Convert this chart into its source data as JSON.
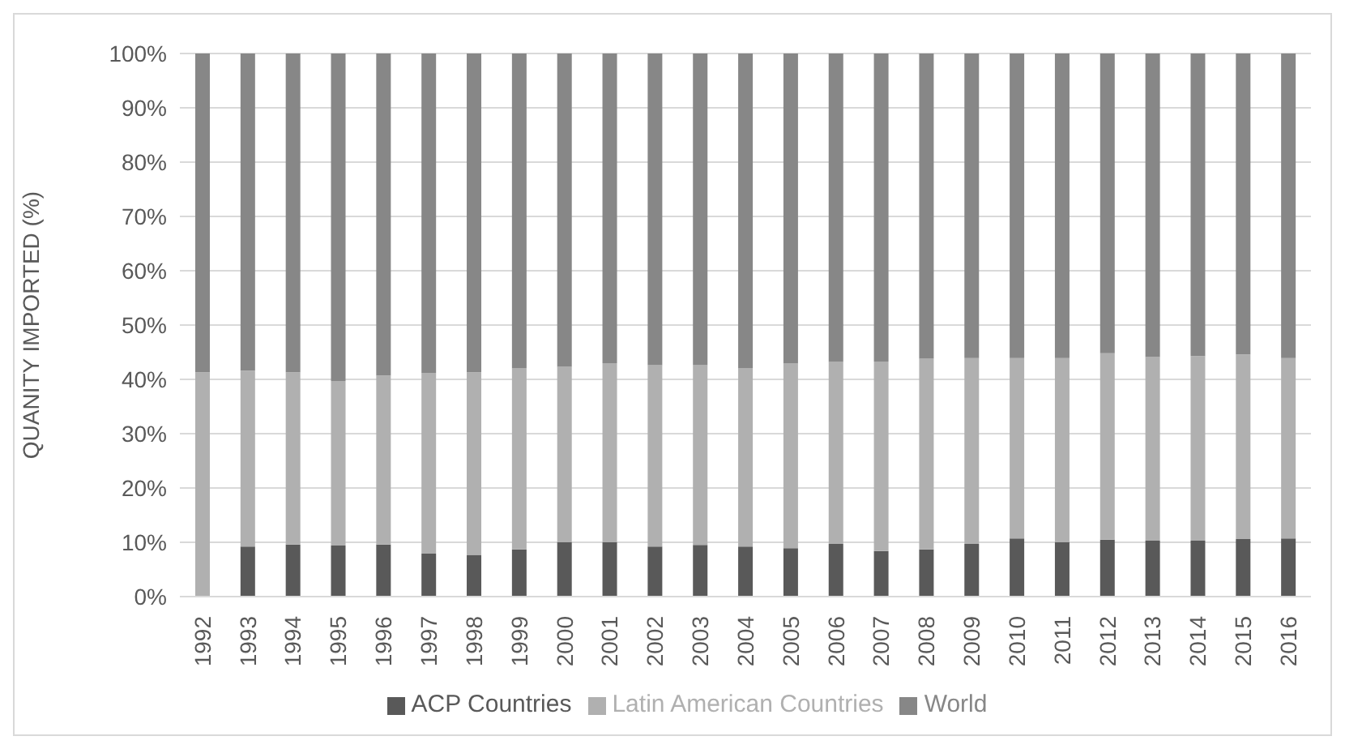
{
  "chart_data": {
    "type": "bar",
    "stacked": true,
    "ylabel": "QUANITY IMPORTED (%)",
    "categories": [
      "1992",
      "1993",
      "1994",
      "1995",
      "1996",
      "1997",
      "1998",
      "1999",
      "2000",
      "2001",
      "2002",
      "2003",
      "2004",
      "2005",
      "2006",
      "2007",
      "2008",
      "2009",
      "2010",
      "2011",
      "2012",
      "2013",
      "2014",
      "2015",
      "2016"
    ],
    "series": [
      {
        "name": "ACP Countries",
        "color": "#595959",
        "values": [
          0,
          9.2,
          9.6,
          9.4,
          9.6,
          7.9,
          7.7,
          8.7,
          10.0,
          10.0,
          9.2,
          9.5,
          9.2,
          8.9,
          9.7,
          8.4,
          8.7,
          9.7,
          10.7,
          10.0,
          10.5,
          10.3,
          10.3,
          10.6,
          10.7
        ]
      },
      {
        "name": "Latin American Countries",
        "color": "#b0b0b0",
        "values": [
          41.3,
          32.4,
          31.7,
          30.3,
          31.1,
          33.3,
          33.6,
          33.3,
          32.3,
          33.0,
          33.4,
          33.1,
          32.8,
          34.0,
          33.5,
          34.9,
          35.1,
          34.2,
          33.2,
          33.9,
          34.3,
          33.8,
          34.0,
          34.0,
          33.2
        ]
      },
      {
        "name": "World",
        "color": "#878787",
        "values": [
          58.7,
          58.4,
          58.7,
          60.3,
          59.3,
          58.8,
          58.7,
          58.0,
          57.7,
          57.0,
          57.4,
          57.4,
          58.0,
          57.1,
          56.8,
          56.7,
          56.2,
          56.1,
          56.1,
          56.1,
          55.2,
          55.9,
          55.7,
          55.4,
          56.1
        ]
      }
    ],
    "ylim": [
      0,
      100
    ],
    "yticks": [
      {
        "value": 0,
        "label": "0%"
      },
      {
        "value": 10,
        "label": "10%"
      },
      {
        "value": 20,
        "label": "20%"
      },
      {
        "value": 30,
        "label": "30%"
      },
      {
        "value": 40,
        "label": "40%"
      },
      {
        "value": 50,
        "label": "50%"
      },
      {
        "value": 60,
        "label": "60%"
      },
      {
        "value": 70,
        "label": "70%"
      },
      {
        "value": 80,
        "label": "80%"
      },
      {
        "value": 90,
        "label": "90%"
      },
      {
        "value": 100,
        "label": "100%"
      }
    ],
    "grid": "y",
    "legend": "bottom"
  }
}
